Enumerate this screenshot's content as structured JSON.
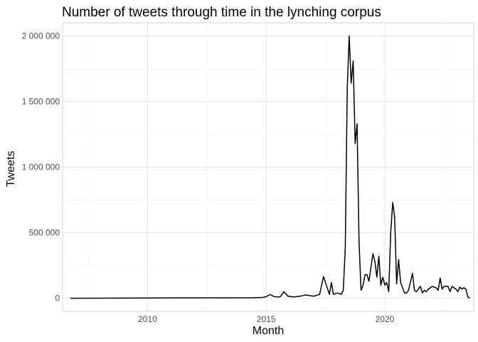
{
  "chart_data": {
    "type": "line",
    "title": "Number of tweets through time in the lynching corpus",
    "xlabel": "Month",
    "ylabel": "Tweets",
    "xlim": [
      "2006-06",
      "2023-10"
    ],
    "ylim": [
      -100000,
      2100000
    ],
    "x_ticks": [
      {
        "value": "2010-01",
        "label": "2010"
      },
      {
        "value": "2015-01",
        "label": "2015"
      },
      {
        "value": "2020-01",
        "label": "2020"
      }
    ],
    "y_ticks": [
      {
        "value": 0,
        "label": "0"
      },
      {
        "value": 500000,
        "label": "500 000"
      },
      {
        "value": 1000000,
        "label": "1 000 000"
      },
      {
        "value": 1500000,
        "label": "1 500 000"
      },
      {
        "value": 2000000,
        "label": "2 000 000"
      }
    ],
    "grid": true,
    "legend": "none",
    "series": [
      {
        "points": [
          [
            "2006-10",
            0
          ],
          [
            "2008-01",
            500
          ],
          [
            "2010-01",
            2000
          ],
          [
            "2012-01",
            3000
          ],
          [
            "2013-06",
            3000
          ],
          [
            "2014-06",
            4000
          ],
          [
            "2014-11",
            6000
          ],
          [
            "2015-01",
            12000
          ],
          [
            "2015-03",
            28000
          ],
          [
            "2015-05",
            12000
          ],
          [
            "2015-08",
            10000
          ],
          [
            "2015-10",
            50000
          ],
          [
            "2015-12",
            15000
          ],
          [
            "2016-03",
            10000
          ],
          [
            "2016-06",
            15000
          ],
          [
            "2016-09",
            25000
          ],
          [
            "2017-01",
            15000
          ],
          [
            "2017-04",
            30000
          ],
          [
            "2017-06",
            165000
          ],
          [
            "2017-09",
            30000
          ],
          [
            "2017-10",
            120000
          ],
          [
            "2017-11",
            30000
          ],
          [
            "2018-01",
            40000
          ],
          [
            "2018-03",
            30000
          ],
          [
            "2018-04",
            60000
          ],
          [
            "2018-05",
            380000
          ],
          [
            "2018-06",
            1600000
          ],
          [
            "2018-07",
            2000000
          ],
          [
            "2018-08",
            1640000
          ],
          [
            "2018-09",
            1810000
          ],
          [
            "2018-10",
            1180000
          ],
          [
            "2018-11",
            1330000
          ],
          [
            "2018-12",
            420000
          ],
          [
            "2019-01",
            60000
          ],
          [
            "2019-02",
            100000
          ],
          [
            "2019-03",
            180000
          ],
          [
            "2019-04",
            180000
          ],
          [
            "2019-05",
            130000
          ],
          [
            "2019-07",
            340000
          ],
          [
            "2019-08",
            280000
          ],
          [
            "2019-09",
            160000
          ],
          [
            "2019-10",
            320000
          ],
          [
            "2019-11",
            100000
          ],
          [
            "2019-12",
            160000
          ],
          [
            "2020-01",
            100000
          ],
          [
            "2020-02",
            120000
          ],
          [
            "2020-03",
            50000
          ],
          [
            "2020-04",
            500000
          ],
          [
            "2020-05",
            730000
          ],
          [
            "2020-06",
            620000
          ],
          [
            "2020-07",
            110000
          ],
          [
            "2020-08",
            295000
          ],
          [
            "2020-09",
            120000
          ],
          [
            "2020-10",
            80000
          ],
          [
            "2020-11",
            40000
          ],
          [
            "2020-12",
            40000
          ],
          [
            "2021-01",
            60000
          ],
          [
            "2021-03",
            190000
          ],
          [
            "2021-04",
            60000
          ],
          [
            "2021-05",
            50000
          ],
          [
            "2021-06",
            70000
          ],
          [
            "2021-07",
            90000
          ],
          [
            "2021-08",
            40000
          ],
          [
            "2021-09",
            60000
          ],
          [
            "2021-10",
            50000
          ],
          [
            "2021-11",
            70000
          ],
          [
            "2022-01",
            90000
          ],
          [
            "2022-03",
            80000
          ],
          [
            "2022-04",
            60000
          ],
          [
            "2022-05",
            155000
          ],
          [
            "2022-06",
            70000
          ],
          [
            "2022-07",
            90000
          ],
          [
            "2022-09",
            90000
          ],
          [
            "2022-10",
            50000
          ],
          [
            "2022-11",
            90000
          ],
          [
            "2023-01",
            70000
          ],
          [
            "2023-02",
            50000
          ],
          [
            "2023-03",
            85000
          ],
          [
            "2023-04",
            70000
          ],
          [
            "2023-05",
            80000
          ],
          [
            "2023-06",
            70000
          ],
          [
            "2023-07",
            10000
          ],
          [
            "2023-08",
            0
          ]
        ]
      }
    ]
  }
}
